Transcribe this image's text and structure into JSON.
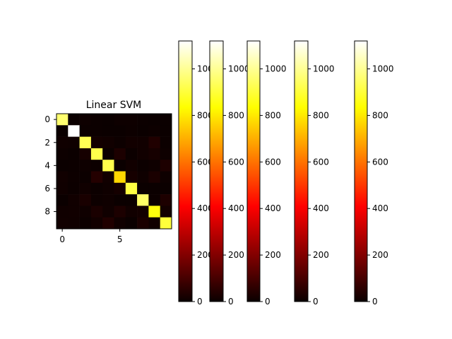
{
  "chart_data": {
    "type": "heatmap",
    "title": "Linear SVM",
    "xlabel": "",
    "ylabel": "",
    "x_ticks": [
      0,
      5
    ],
    "y_ticks": [
      0,
      2,
      4,
      6,
      8
    ],
    "colormap": "hot",
    "vmin": 0,
    "vmax": 1120,
    "matrix": [
      [
        960,
        0,
        5,
        2,
        1,
        5,
        5,
        2,
        1,
        0
      ],
      [
        0,
        1120,
        3,
        2,
        0,
        1,
        4,
        1,
        4,
        0
      ],
      [
        8,
        7,
        930,
        14,
        10,
        4,
        12,
        10,
        34,
        3
      ],
      [
        4,
        1,
        18,
        920,
        1,
        28,
        2,
        11,
        19,
        6
      ],
      [
        1,
        3,
        5,
        3,
        920,
        0,
        10,
        3,
        7,
        30
      ],
      [
        10,
        4,
        3,
        40,
        10,
        770,
        18,
        7,
        25,
        5
      ],
      [
        9,
        3,
        8,
        2,
        7,
        17,
        910,
        1,
        1,
        0
      ],
      [
        1,
        10,
        23,
        4,
        7,
        1,
        0,
        950,
        3,
        29
      ],
      [
        8,
        10,
        7,
        24,
        8,
        28,
        11,
        14,
        850,
        14
      ],
      [
        10,
        8,
        2,
        12,
        34,
        8,
        0,
        25,
        9,
        901
      ]
    ],
    "colorbars": [
      {
        "ticks": [
          0,
          200,
          400,
          600,
          800,
          1000
        ]
      },
      {
        "ticks": [
          0,
          200,
          400,
          600,
          800,
          1000
        ]
      },
      {
        "ticks": [
          0,
          200,
          400,
          600,
          800,
          1000
        ]
      },
      {
        "ticks": [
          0,
          200,
          400,
          600,
          800,
          1000
        ]
      },
      {
        "ticks": [
          0,
          200,
          400,
          600,
          800,
          1000
        ]
      }
    ]
  }
}
